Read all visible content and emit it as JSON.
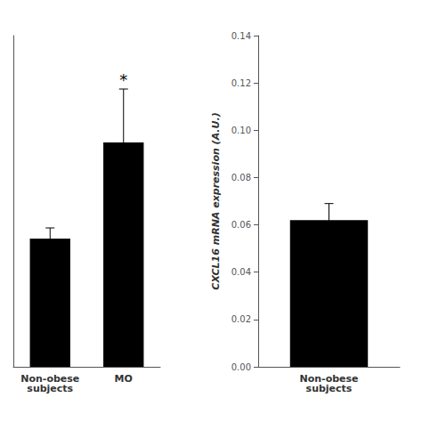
{
  "chart_data": [
    {
      "type": "bar",
      "categories": [
        "Non-obese\nsubjects",
        "MO"
      ],
      "values": [
        0.06,
        0.105
      ],
      "errors": [
        0.005,
        0.025
      ],
      "color": "#000000",
      "ylim": [
        0,
        0.155
      ],
      "tick_labels": "x",
      "grid": false,
      "annotations": [
        {
          "text": "*",
          "category": "MO"
        }
      ]
    },
    {
      "type": "bar",
      "categories": [
        "Non-obese\nsubjects"
      ],
      "values": [
        0.062
      ],
      "errors": [
        0.007
      ],
      "color": "#000000",
      "ylabel": "CXCL16 mRNA expression (A.U.)",
      "ylim": [
        0,
        0.14
      ],
      "yticks": [
        {
          "value": 0.0,
          "label": "0.00"
        },
        {
          "value": 0.02,
          "label": "0.02"
        },
        {
          "value": 0.04,
          "label": "0.04"
        },
        {
          "value": 0.06,
          "label": "0.06"
        },
        {
          "value": 0.08,
          "label": "0.08"
        },
        {
          "value": 0.1,
          "label": "0.10"
        },
        {
          "value": 0.12,
          "label": "0.12"
        },
        {
          "value": 0.14,
          "label": "0.14"
        }
      ],
      "grid": false
    }
  ]
}
